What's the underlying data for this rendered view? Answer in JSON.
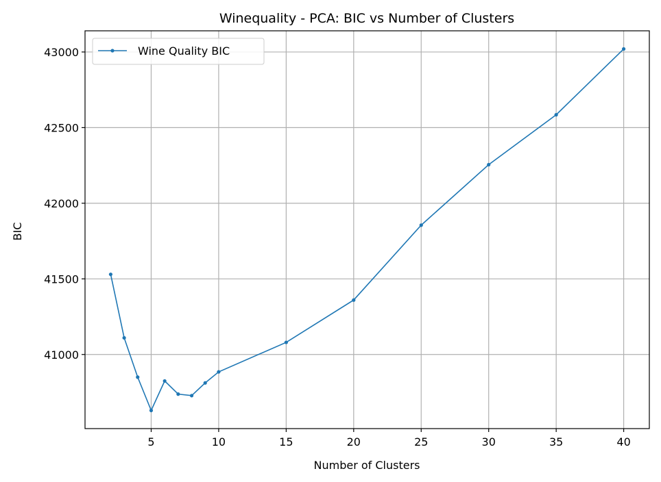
{
  "chart_data": {
    "type": "line",
    "title": "Winequality - PCA: BIC vs Number of Clusters",
    "xlabel": "Number of Clusters",
    "ylabel": "BIC",
    "x": [
      2,
      3,
      4,
      5,
      6,
      7,
      8,
      9,
      10,
      15,
      20,
      25,
      30,
      35,
      40
    ],
    "series": [
      {
        "name": "Wine Quality BIC",
        "values": [
          41530,
          41110,
          40850,
          40630,
          40825,
          40738,
          40728,
          40812,
          40885,
          41080,
          41360,
          41855,
          42255,
          42585,
          43020
        ]
      }
    ],
    "xticks": [
      5,
      10,
      15,
      20,
      25,
      30,
      35,
      40
    ],
    "yticks": [
      41000,
      41500,
      42000,
      42500,
      43000
    ],
    "xlim": [
      0.1,
      41.9
    ],
    "ylim": [
      40510,
      43140
    ],
    "grid": true,
    "legend_position": "top-left",
    "color": "#1f77b4"
  }
}
